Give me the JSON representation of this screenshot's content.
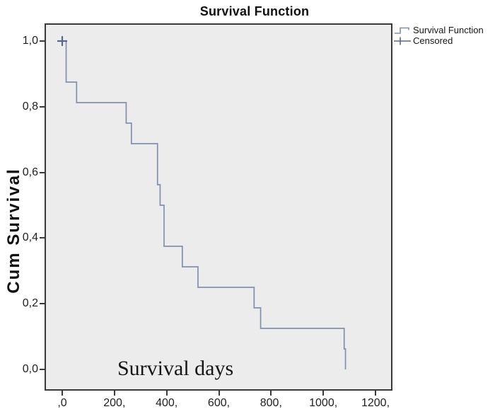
{
  "title": "Survival Function",
  "chart_data": {
    "type": "line",
    "subtype": "kaplan-meier-step-function",
    "title": "Survival Function",
    "ylabel": "Cum Survival",
    "inplot_label": "Survival days",
    "x_tick_labels": [
      ",0",
      "200,",
      "400,",
      "600,",
      "800,",
      "1000,",
      "1200,"
    ],
    "x_tick_values": [
      0,
      200,
      400,
      600,
      800,
      1000,
      1200
    ],
    "y_tick_labels": [
      "1,0",
      "0,8",
      "0,6",
      "0,4",
      "0,2",
      "0,0"
    ],
    "y_tick_values": [
      1.0,
      0.8,
      0.6,
      0.4,
      0.2,
      0.0
    ],
    "xlim": [
      0,
      1265
    ],
    "ylim": [
      0,
      1.05
    ],
    "grid": false,
    "legend_position": "top-right-outside",
    "legend": [
      {
        "label": "Survival Function",
        "symbol": "step-line"
      },
      {
        "label": "Censored",
        "symbol": "plus"
      }
    ],
    "step_points": [
      [
        0,
        1.0
      ],
      [
        15,
        1.0
      ],
      [
        15,
        0.875
      ],
      [
        55,
        0.875
      ],
      [
        55,
        0.8125
      ],
      [
        245,
        0.8125
      ],
      [
        245,
        0.75
      ],
      [
        265,
        0.75
      ],
      [
        265,
        0.6875
      ],
      [
        365,
        0.6875
      ],
      [
        365,
        0.5625
      ],
      [
        375,
        0.5625
      ],
      [
        375,
        0.5
      ],
      [
        390,
        0.5
      ],
      [
        390,
        0.375
      ],
      [
        460,
        0.375
      ],
      [
        460,
        0.3125
      ],
      [
        520,
        0.3125
      ],
      [
        520,
        0.25
      ],
      [
        735,
        0.25
      ],
      [
        735,
        0.1875
      ],
      [
        760,
        0.1875
      ],
      [
        760,
        0.125
      ],
      [
        1080,
        0.125
      ],
      [
        1080,
        0.0625
      ],
      [
        1085,
        0.0625
      ],
      [
        1085,
        0.0
      ]
    ],
    "censored_points": [
      [
        0,
        1.0
      ]
    ],
    "colors": {
      "curve": "#8090af",
      "censored": "#56688f",
      "plot_background": "#ececec",
      "frame": "#3a3a3a",
      "text": "#1f1f1f"
    }
  }
}
